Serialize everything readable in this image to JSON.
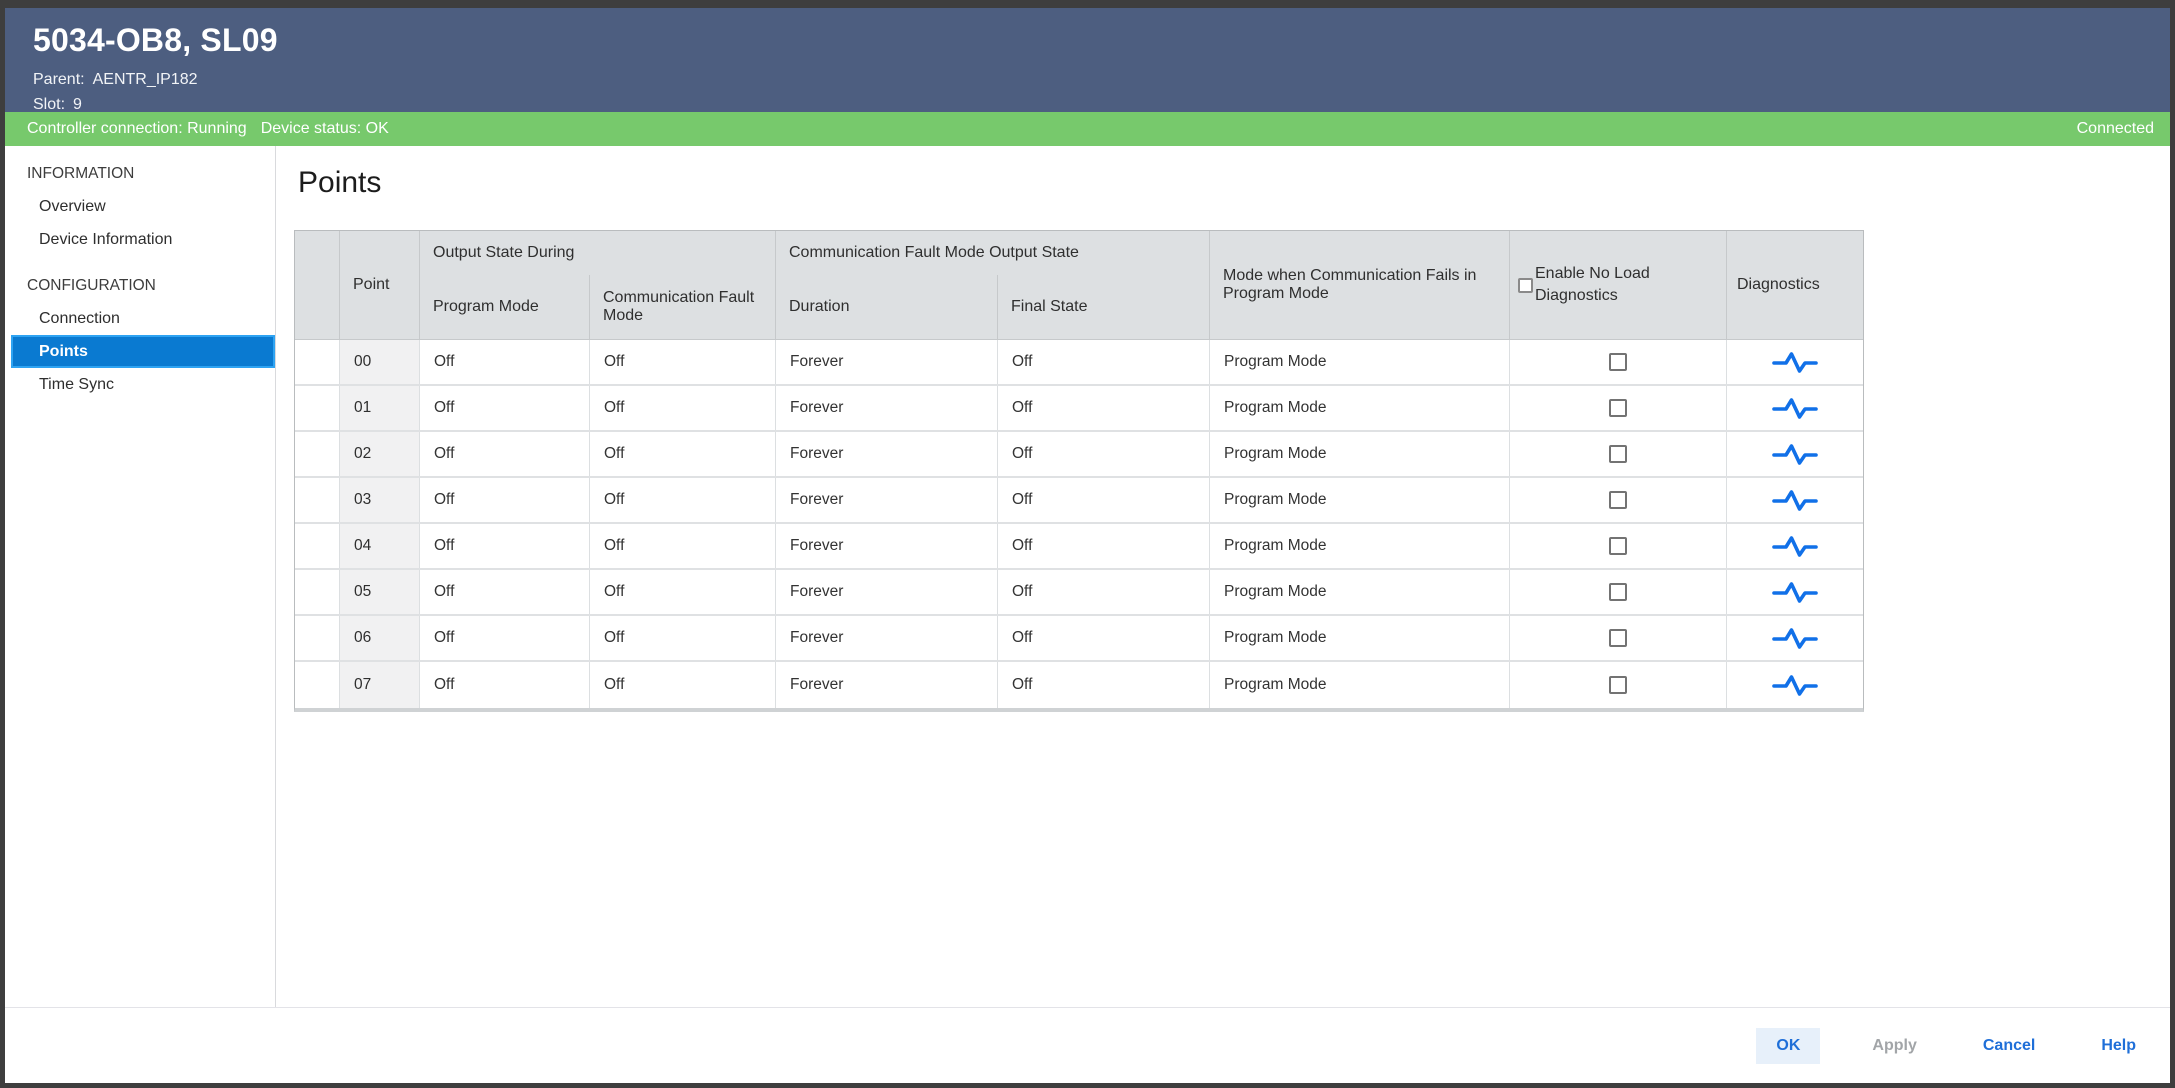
{
  "window": {
    "title": "5034-OB8, SL09",
    "subtitle_lines": [
      {
        "label": "Parent:",
        "value": "AENTR_IP182"
      },
      {
        "label": "Slot:",
        "value": "9"
      }
    ]
  },
  "status_bar": {
    "left_items": [
      "Controller connection: Running",
      "Device status: OK"
    ],
    "right_status": "Connected"
  },
  "sidebar": {
    "sections": [
      {
        "label": "INFORMATION",
        "items": [
          {
            "label": "Overview"
          },
          {
            "label": "Device Information"
          }
        ]
      },
      {
        "label": "CONFIGURATION",
        "items": [
          {
            "label": "Connection"
          },
          {
            "label": "Points"
          },
          {
            "label": "Time Sync"
          }
        ]
      }
    ],
    "selected_item": "Points"
  },
  "main": {
    "title": "Points",
    "table": {
      "group_headers": [
        "Output State During",
        "Communication Fault Mode Output State"
      ],
      "columns": {
        "point": "Point",
        "program_mode": "Program Mode",
        "communication_fault_mode": "Communication Fault Mode",
        "duration": "Duration",
        "final_state": "Final State",
        "mode_when_fails": "Mode when Communication Fails in Program Mode",
        "enable_no_load": "Enable No Load Diagnostics",
        "diagnostics": "Diagnostics"
      },
      "header_enable_no_load_checked": false,
      "rows": [
        {
          "point": "00",
          "program_mode": "Off",
          "communication_fault_mode": "Off",
          "duration": "Forever",
          "final_state": "Off",
          "mode_when_fails": "Program Mode",
          "no_load_checked": false
        },
        {
          "point": "01",
          "program_mode": "Off",
          "communication_fault_mode": "Off",
          "duration": "Forever",
          "final_state": "Off",
          "mode_when_fails": "Program Mode",
          "no_load_checked": false
        },
        {
          "point": "02",
          "program_mode": "Off",
          "communication_fault_mode": "Off",
          "duration": "Forever",
          "final_state": "Off",
          "mode_when_fails": "Program Mode",
          "no_load_checked": false
        },
        {
          "point": "03",
          "program_mode": "Off",
          "communication_fault_mode": "Off",
          "duration": "Forever",
          "final_state": "Off",
          "mode_when_fails": "Program Mode",
          "no_load_checked": false
        },
        {
          "point": "04",
          "program_mode": "Off",
          "communication_fault_mode": "Off",
          "duration": "Forever",
          "final_state": "Off",
          "mode_when_fails": "Program Mode",
          "no_load_checked": false
        },
        {
          "point": "05",
          "program_mode": "Off",
          "communication_fault_mode": "Off",
          "duration": "Forever",
          "final_state": "Off",
          "mode_when_fails": "Program Mode",
          "no_load_checked": false
        },
        {
          "point": "06",
          "program_mode": "Off",
          "communication_fault_mode": "Off",
          "duration": "Forever",
          "final_state": "Off",
          "mode_when_fails": "Program Mode",
          "no_load_checked": false
        },
        {
          "point": "07",
          "program_mode": "Off",
          "communication_fault_mode": "Off",
          "duration": "Forever",
          "final_state": "Off",
          "mode_when_fails": "Program Mode",
          "no_load_checked": false
        }
      ]
    }
  },
  "footer": {
    "ok": "OK",
    "apply": "Apply",
    "cancel": "Cancel",
    "help": "Help"
  },
  "colors": {
    "header_bg": "#4d5e80",
    "status_green": "#77c96c",
    "selected_blue": "#0a7ad1",
    "accent_blue": "#1f6fd8",
    "diagnostics_icon_blue": "#1170e8",
    "table_header_gray": "#dde0e2"
  }
}
